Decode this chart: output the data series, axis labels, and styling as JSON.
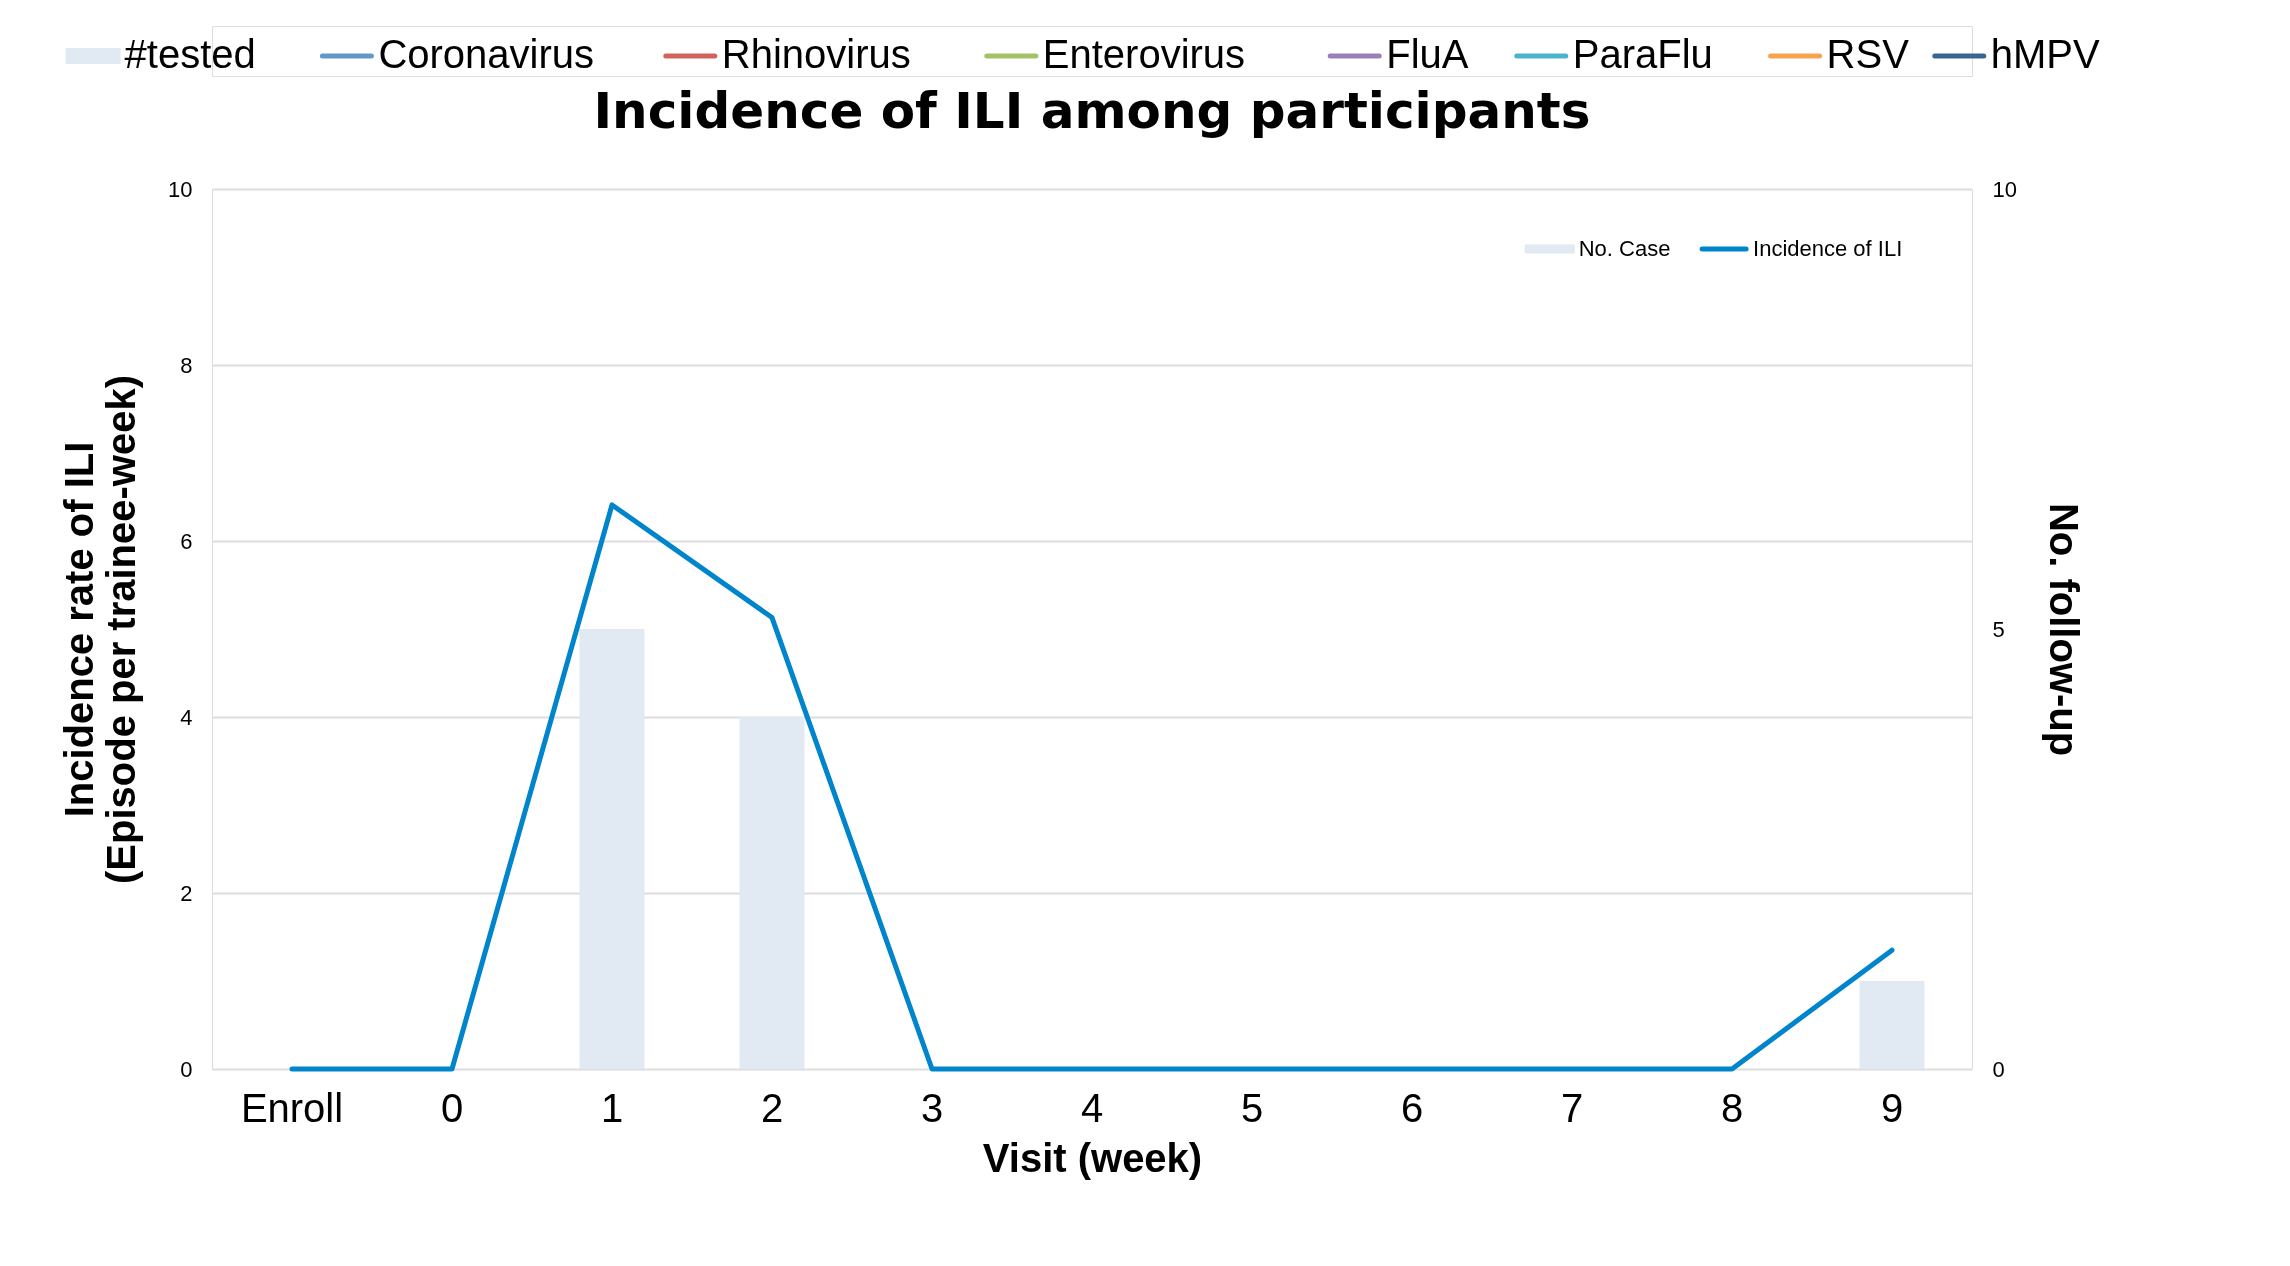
{
  "chart_data": {
    "type": "line",
    "title": "Incidence of ILI among participants",
    "xlabel": "Visit (week)",
    "ylabel": "Incidence rate of ILI\n(Episode per trainee-week)",
    "y2label": "No. follow-up",
    "categories": [
      "Enroll",
      "0",
      "1",
      "2",
      "3",
      "4",
      "5",
      "6",
      "7",
      "8",
      "9"
    ],
    "series": [
      {
        "name": "#tested",
        "type": "bar",
        "color": "#e1e9f3",
        "values": [
          null,
          null,
          null,
          null,
          null,
          null,
          null,
          null,
          null,
          null,
          null
        ]
      },
      {
        "name": "Coronavirus",
        "type": "line",
        "color": "#6497c9",
        "values": [
          null,
          null,
          null,
          null,
          null,
          null,
          null,
          null,
          null,
          null,
          null
        ]
      },
      {
        "name": "Rhinovirus",
        "type": "line",
        "color": "#d0635b",
        "values": [
          null,
          null,
          null,
          null,
          null,
          null,
          null,
          null,
          null,
          null,
          null
        ]
      },
      {
        "name": "Enterovirus",
        "type": "line",
        "color": "#a4c265",
        "values": [
          null,
          null,
          null,
          null,
          null,
          null,
          null,
          null,
          null,
          null,
          null
        ]
      },
      {
        "name": "FluA",
        "type": "line",
        "color": "#9b80b8",
        "values": [
          null,
          null,
          null,
          null,
          null,
          null,
          null,
          null,
          null,
          null,
          null
        ]
      },
      {
        "name": "ParaFlu",
        "type": "line",
        "color": "#4bb3cf",
        "values": [
          null,
          null,
          null,
          null,
          null,
          null,
          null,
          null,
          null,
          null,
          null
        ]
      },
      {
        "name": "RSV",
        "type": "line",
        "color": "#f7a24f",
        "values": [
          null,
          null,
          null,
          null,
          null,
          null,
          null,
          null,
          null,
          null,
          null
        ]
      },
      {
        "name": "hMPV",
        "type": "line",
        "color": "#3a6590",
        "values": [
          null,
          null,
          null,
          null,
          null,
          null,
          null,
          null,
          null,
          null,
          null
        ]
      },
      {
        "name": "No. Case",
        "type": "bar",
        "axis": "y2",
        "color": "#e1e9f3",
        "values": [
          0,
          0,
          5,
          4,
          0,
          0,
          0,
          0,
          0,
          0,
          1
        ]
      },
      {
        "name": "Incidence of ILI",
        "color": "#0085cc",
        "values": [
          0,
          0,
          6.41,
          5.13,
          0,
          0,
          0,
          0,
          0,
          0,
          1.35
        ]
      }
    ],
    "ylim": [
      0,
      10
    ],
    "yticks": [
      0,
      2,
      4,
      6,
      8,
      10
    ],
    "y2lim": [
      0,
      10
    ],
    "y2ticks": [
      0,
      5,
      10
    ],
    "grid": "y",
    "legend": "top"
  }
}
